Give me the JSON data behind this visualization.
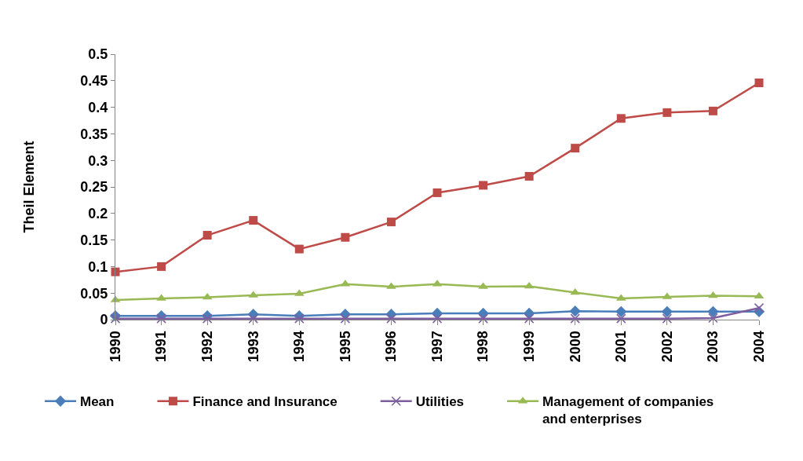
{
  "chart_data": {
    "type": "line",
    "ylabel": "Theil Element",
    "x": [
      1990,
      1991,
      1992,
      1993,
      1994,
      1995,
      1996,
      1997,
      1998,
      1999,
      2000,
      2001,
      2002,
      2003,
      2004
    ],
    "xlim": [
      1990,
      2004
    ],
    "xticks": [
      1990,
      1991,
      1992,
      1993,
      1994,
      1995,
      1996,
      1997,
      1998,
      1999,
      2000,
      2001,
      2002,
      2003,
      2004
    ],
    "ylim": [
      0,
      0.5
    ],
    "yticks": [
      0,
      0.05,
      0.1,
      0.15,
      0.2,
      0.25,
      0.3,
      0.35,
      0.4,
      0.45,
      0.5
    ],
    "grid": false,
    "legend": "bottom",
    "line_style": "solid",
    "series": [
      {
        "name": "Mean",
        "color": "#4a7ebb",
        "marker": "diamond",
        "values": [
          0.007,
          0.007,
          0.007,
          0.01,
          0.007,
          0.01,
          0.01,
          0.012,
          0.012,
          0.012,
          0.016,
          0.015,
          0.015,
          0.015,
          0.015
        ]
      },
      {
        "name": "Finance and Insurance",
        "color": "#be4b48",
        "marker": "square",
        "values": [
          0.09,
          0.1,
          0.159,
          0.187,
          0.133,
          0.155,
          0.184,
          0.239,
          0.253,
          0.27,
          0.323,
          0.379,
          0.39,
          0.393,
          0.446
        ]
      },
      {
        "name": "Utilities",
        "color": "#7d5fa0",
        "marker": "cross",
        "values": [
          0.002,
          0.002,
          0.002,
          0.002,
          0.002,
          0.002,
          0.002,
          0.002,
          0.002,
          0.002,
          0.002,
          0.002,
          0.002,
          0.003,
          0.022
        ]
      },
      {
        "name": "Management of companies and enterprises",
        "color": "#98b954",
        "marker": "triangle",
        "values": [
          0.037,
          0.04,
          0.042,
          0.046,
          0.049,
          0.067,
          0.062,
          0.067,
          0.062,
          0.063,
          0.051,
          0.04,
          0.043,
          0.045,
          0.044
        ]
      }
    ]
  }
}
